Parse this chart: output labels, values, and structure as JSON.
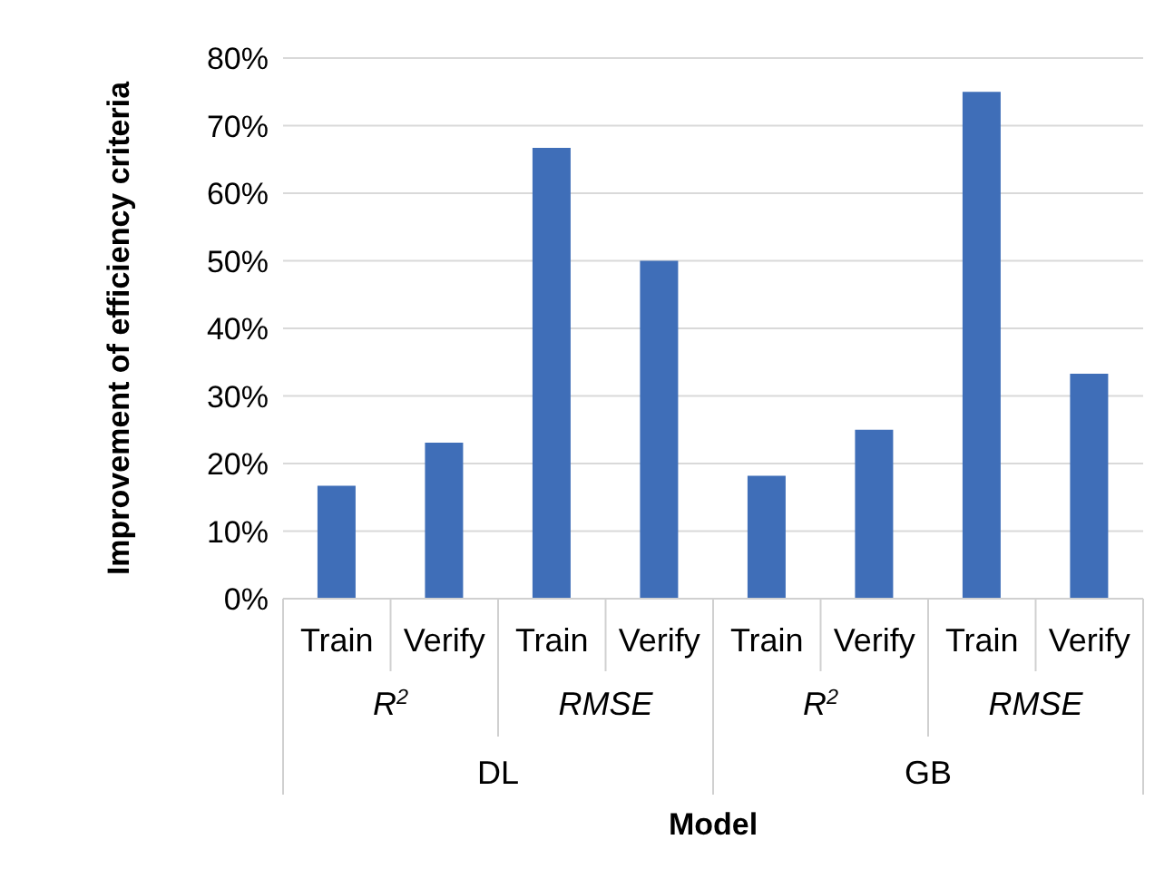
{
  "chart_data": {
    "type": "bar",
    "xlabel": "Model",
    "ylabel": "Improvement of efficiency criteria",
    "categories": [
      "Train",
      "Verify",
      "Train",
      "Verify",
      "Train",
      "Verify",
      "Train",
      "Verify"
    ],
    "values": [
      16.7,
      23.1,
      66.7,
      50,
      18.2,
      25,
      75,
      33.3
    ],
    "color": "#3f6eb8",
    "ylim": [
      0,
      80
    ],
    "yticks": [
      {
        "value": 0,
        "label": "0%"
      },
      {
        "value": 10,
        "label": "10%"
      },
      {
        "value": 20,
        "label": "20%"
      },
      {
        "value": 30,
        "label": "30%"
      },
      {
        "value": 40,
        "label": "40%"
      },
      {
        "value": 50,
        "label": "50%"
      },
      {
        "value": 60,
        "label": "60%"
      },
      {
        "value": 70,
        "label": "70%"
      },
      {
        "value": 80,
        "label": "80%"
      }
    ],
    "grid": "y",
    "annotations": [
      "R$^{2}$",
      "RMSE",
      "R$^{2}$",
      "RMSE",
      "DL",
      "GB"
    ]
  }
}
